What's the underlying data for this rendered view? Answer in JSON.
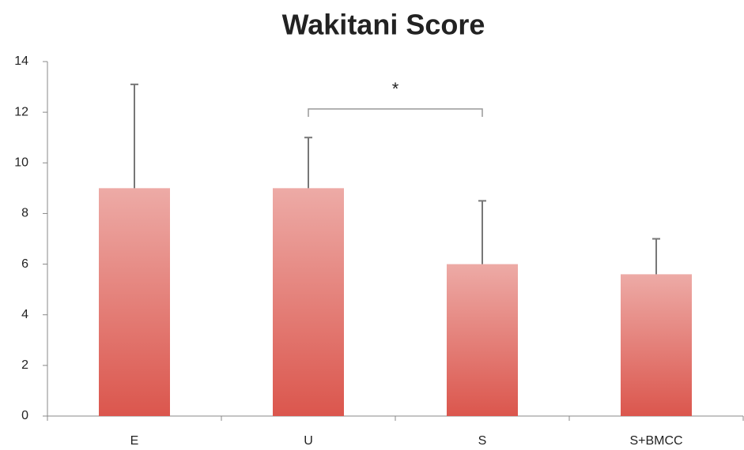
{
  "chart_data": {
    "type": "bar",
    "title": "Wakitani Score",
    "categories": [
      "E",
      "U",
      "S",
      "S+BMCC"
    ],
    "values": [
      9,
      9,
      6,
      5.6
    ],
    "errors": [
      4.1,
      2,
      2.5,
      1.4
    ],
    "color": "#db564d",
    "ylim": [
      0,
      14
    ],
    "yticks": [
      0,
      2,
      4,
      6,
      8,
      10,
      12,
      14
    ],
    "grid": false,
    "annotation": {
      "text": "*",
      "between": [
        "U",
        "S"
      ]
    }
  }
}
